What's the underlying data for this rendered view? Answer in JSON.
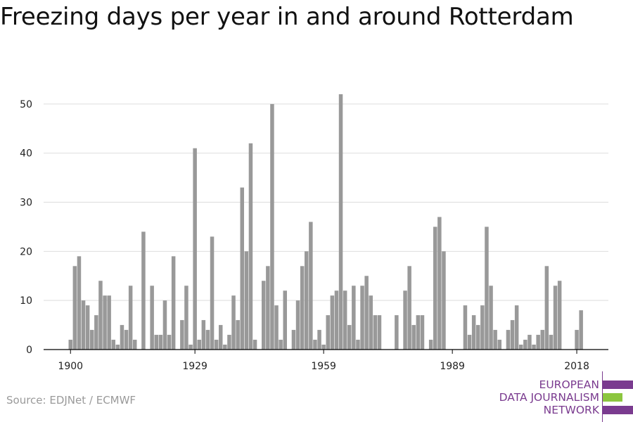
{
  "title": "Freezing days per year in and around Rotterdam",
  "source": "Source: EDJNet / ECMWF",
  "logo": {
    "lines": [
      "EUROPEAN",
      "DATA JOURNALISM",
      "NETWORK"
    ],
    "colors": [
      "#7a3b8f",
      "#8cc63f",
      "#7a3b8f"
    ]
  },
  "colors": {
    "bar": "#999999",
    "grid": "#dddddd",
    "axis": "#000000",
    "text": "#222222"
  },
  "chart_data": {
    "type": "bar",
    "title": "Freezing days per year in and around Rotterdam",
    "xlabel": "",
    "ylabel": "",
    "ylim": [
      0,
      55
    ],
    "y_ticks": [
      0,
      10,
      20,
      30,
      40,
      50
    ],
    "x_ticks": [
      1900,
      1929,
      1959,
      1989,
      2018
    ],
    "grid": true,
    "x": [
      1900,
      1901,
      1902,
      1903,
      1904,
      1905,
      1906,
      1907,
      1908,
      1909,
      1910,
      1911,
      1912,
      1913,
      1914,
      1915,
      1916,
      1917,
      1918,
      1919,
      1920,
      1921,
      1922,
      1923,
      1924,
      1925,
      1926,
      1927,
      1928,
      1929,
      1930,
      1931,
      1932,
      1933,
      1934,
      1935,
      1936,
      1937,
      1938,
      1939,
      1940,
      1941,
      1942,
      1943,
      1944,
      1945,
      1946,
      1947,
      1948,
      1949,
      1950,
      1951,
      1952,
      1953,
      1954,
      1955,
      1956,
      1957,
      1958,
      1959,
      1960,
      1961,
      1962,
      1963,
      1964,
      1965,
      1966,
      1967,
      1968,
      1969,
      1970,
      1971,
      1972,
      1973,
      1974,
      1975,
      1976,
      1977,
      1978,
      1979,
      1980,
      1981,
      1982,
      1983,
      1984,
      1985,
      1986,
      1987,
      1988,
      1989,
      1990,
      1991,
      1992,
      1993,
      1994,
      1995,
      1996,
      1997,
      1998,
      1999,
      2000,
      2001,
      2002,
      2003,
      2004,
      2005,
      2006,
      2007,
      2008,
      2009,
      2010,
      2011,
      2012,
      2013,
      2014,
      2015,
      2016,
      2017,
      2018,
      2019
    ],
    "values": [
      2,
      17,
      19,
      10,
      9,
      4,
      7,
      14,
      11,
      11,
      2,
      1,
      5,
      4,
      13,
      2,
      0,
      24,
      0,
      13,
      3,
      3,
      10,
      3,
      19,
      0,
      6,
      13,
      1,
      41,
      2,
      6,
      4,
      23,
      2,
      5,
      1,
      3,
      11,
      6,
      33,
      20,
      42,
      2,
      0,
      14,
      17,
      50,
      9,
      2,
      12,
      0,
      4,
      10,
      17,
      20,
      26,
      2,
      4,
      1,
      7,
      11,
      12,
      52,
      12,
      5,
      13,
      2,
      13,
      15,
      11,
      7,
      7,
      0,
      0,
      0,
      7,
      0,
      12,
      17,
      5,
      7,
      7,
      0,
      2,
      25,
      27,
      20,
      0,
      0,
      0,
      0,
      9,
      3,
      7,
      5,
      9,
      25,
      13,
      4,
      2,
      0,
      4,
      6,
      9,
      1,
      2,
      3,
      1,
      3,
      4,
      17,
      3,
      13,
      14,
      0,
      0,
      0,
      4,
      8
    ]
  }
}
